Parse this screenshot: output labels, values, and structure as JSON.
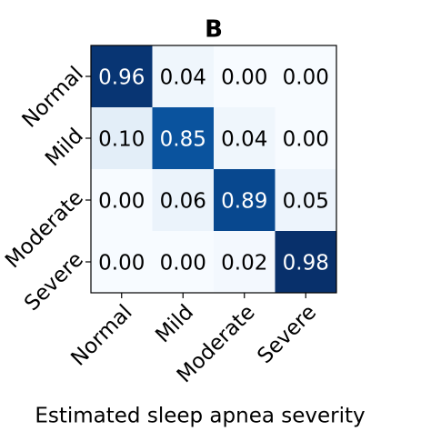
{
  "chart_data": {
    "type": "heatmap",
    "title": "B",
    "xlabel": "Estimated sleep apnea severity",
    "x_categories": [
      "Normal",
      "Mild",
      "Moderate",
      "Severe"
    ],
    "y_categories": [
      "Normal",
      "Mild",
      "Moderate",
      "Severe"
    ],
    "values": [
      [
        0.96,
        0.04,
        0,
        0
      ],
      [
        0.1,
        0.85,
        0.04,
        0
      ],
      [
        0,
        0.06,
        0.89,
        0.05
      ],
      [
        0,
        0,
        0.02,
        0.98
      ]
    ],
    "value_labels": [
      [
        "0.96",
        "0.04",
        "0.00",
        "0.00"
      ],
      [
        "0.10",
        "0.85",
        "0.04",
        "0.00"
      ],
      [
        "0.00",
        "0.06",
        "0.89",
        "0.05"
      ],
      [
        "0.00",
        "0.00",
        "0.02",
        "0.98"
      ]
    ],
    "colormap": "Blues"
  }
}
